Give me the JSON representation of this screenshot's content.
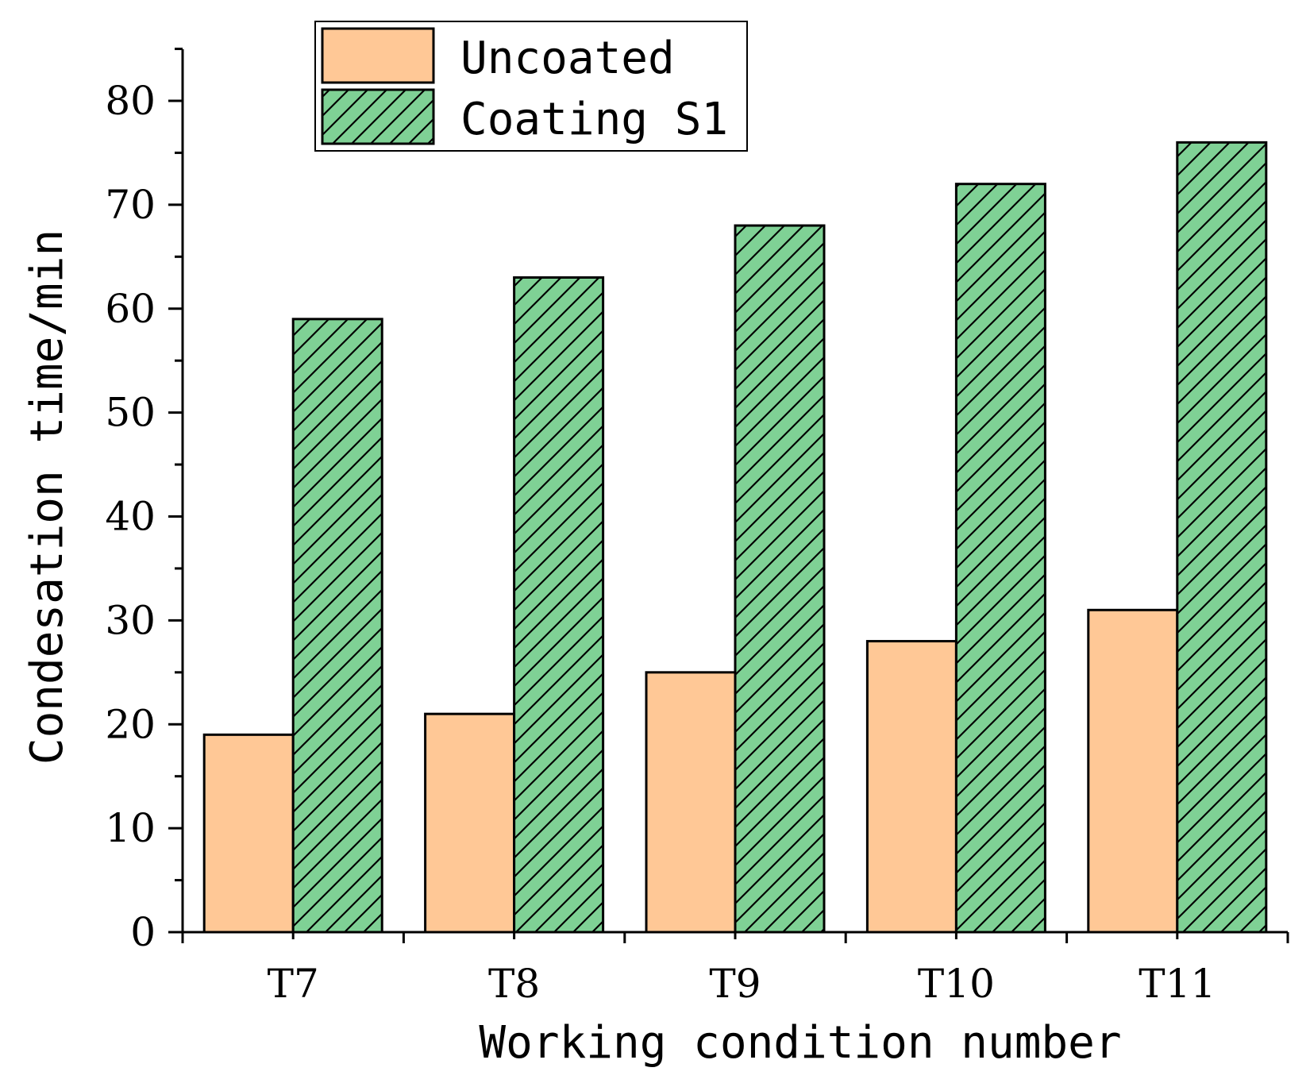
{
  "chart_data": {
    "type": "bar",
    "xlabel": "Working condition number",
    "ylabel": "Condesation time/min",
    "categories": [
      "T7",
      "T8",
      "T9",
      "T10",
      "T11"
    ],
    "ylim": [
      0,
      85
    ],
    "yticks": [
      0,
      10,
      20,
      30,
      40,
      50,
      60,
      70,
      80
    ],
    "legend_position": "top-left",
    "grid": false,
    "series": [
      {
        "name": "Uncoated",
        "values": [
          19,
          21,
          25,
          28,
          31
        ],
        "color": "#ffc896",
        "pattern": "solid"
      },
      {
        "name": "Coating S1",
        "values": [
          59,
          63,
          68,
          72,
          76
        ],
        "color": "#7fd195",
        "pattern": "diagonal-hatch"
      }
    ]
  }
}
